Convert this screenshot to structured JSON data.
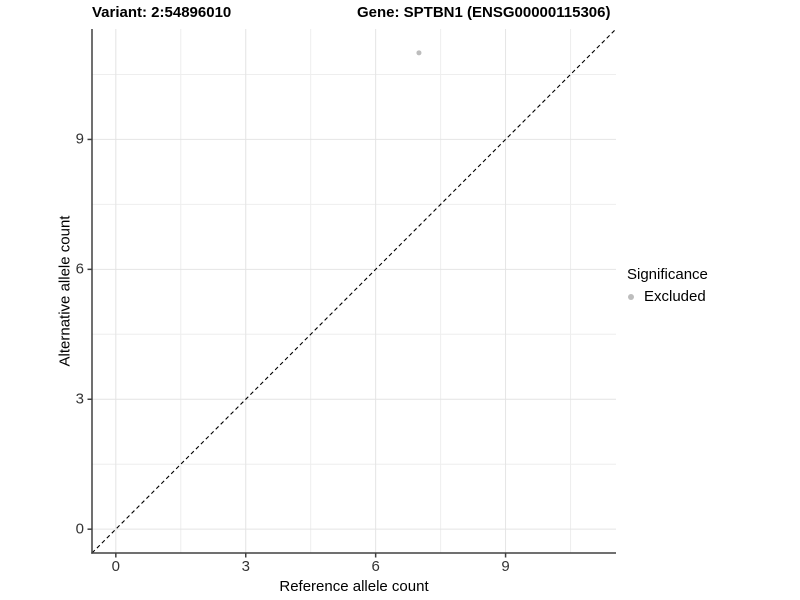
{
  "titles": {
    "variant": "Variant: 2:54896010",
    "gene": "Gene: SPTBN1 (ENSG00000115306)"
  },
  "chart_data": {
    "type": "scatter",
    "xlabel": "Reference allele count",
    "ylabel": "Alternative allele count",
    "xlim": [
      -0.55,
      11.55
    ],
    "ylim": [
      -0.55,
      11.55
    ],
    "x_ticks": [
      0,
      3,
      6,
      9
    ],
    "y_ticks": [
      0,
      3,
      6,
      9
    ],
    "minor_breaks": [
      1.5,
      4.5,
      7.5,
      10.5
    ],
    "grid": true,
    "points": [
      {
        "x": 7,
        "y": 11,
        "series": "Excluded"
      }
    ],
    "reference_line": {
      "type": "identity",
      "style": "dashed",
      "color": "#000000"
    },
    "legend": {
      "title": "Significance",
      "position": "right",
      "entries": [
        {
          "label": "Excluded",
          "color": "#bdbdbd"
        }
      ]
    }
  },
  "colors": {
    "point": "#bdbdbd",
    "grid_major": "#e4e4e4",
    "grid_minor": "#eeeeee",
    "axis_line": "#404040",
    "tick_mark": "#404040",
    "tick_label": "#333333",
    "background": "#ffffff"
  }
}
